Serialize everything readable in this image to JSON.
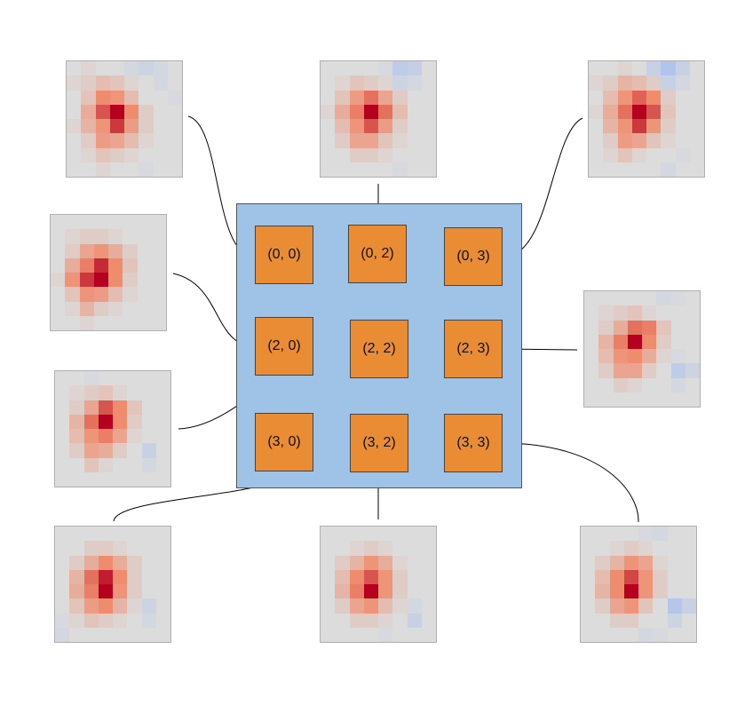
{
  "cells": [
    {
      "label": "(0, 0)"
    },
    {
      "label": "(0, 2)"
    },
    {
      "label": "(0, 3)"
    },
    {
      "label": "(2, 0)"
    },
    {
      "label": "(2, 2)"
    },
    {
      "label": "(2, 3)"
    },
    {
      "label": "(3, 0)"
    },
    {
      "label": "(3, 2)"
    },
    {
      "label": "(3, 3)"
    }
  ],
  "colors": {
    "panel": "#9fc3e7",
    "cell": "#e98c33",
    "heat_neutral": "#dcdcdc",
    "heat_cold": "#7aa6ff",
    "heat_hot": "#b5001f"
  },
  "heatmaps": [
    {
      "cell": "(0, 0)",
      "grid": [
        [
          0,
          0.05,
          0,
          0,
          -0.1,
          -0.15,
          -0.1,
          0
        ],
        [
          0.05,
          0.1,
          0.2,
          0.15,
          0.05,
          0,
          -0.1,
          0
        ],
        [
          0,
          0.15,
          0.5,
          0.45,
          0.2,
          0,
          0,
          -0.05
        ],
        [
          0,
          0.3,
          0.7,
          1.0,
          0.5,
          0.1,
          0,
          0
        ],
        [
          0.05,
          0.25,
          0.45,
          0.8,
          0.4,
          0.1,
          0,
          0
        ],
        [
          0,
          0.1,
          0.4,
          0.35,
          0.2,
          0.05,
          0,
          0
        ],
        [
          0,
          0.05,
          0.15,
          0.1,
          0.05,
          0,
          0,
          0
        ],
        [
          0,
          0,
          0.05,
          0,
          0,
          -0.05,
          0,
          0
        ]
      ]
    },
    {
      "cell": "(0, 2)",
      "grid": [
        [
          0,
          0,
          0,
          0,
          -0.05,
          -0.3,
          -0.25,
          0
        ],
        [
          0,
          0.05,
          0.15,
          0.1,
          0.05,
          -0.15,
          -0.1,
          0
        ],
        [
          0,
          0.15,
          0.4,
          0.6,
          0.35,
          0.1,
          0,
          0
        ],
        [
          0.05,
          0.3,
          0.55,
          1.0,
          0.6,
          0.2,
          0,
          0
        ],
        [
          0,
          0.2,
          0.45,
          0.7,
          0.4,
          0.1,
          0,
          0
        ],
        [
          0,
          0.1,
          0.35,
          0.35,
          0.15,
          0.05,
          0,
          0
        ],
        [
          0,
          0,
          0.1,
          0.1,
          0.05,
          0,
          0,
          0
        ],
        [
          0,
          0,
          0,
          0,
          0,
          -0.05,
          0,
          0
        ]
      ]
    },
    {
      "cell": "(0, 3)",
      "grid": [
        [
          0,
          0,
          0.05,
          0,
          -0.2,
          -0.45,
          -0.2,
          0
        ],
        [
          0.05,
          0.1,
          0.25,
          0.2,
          0.1,
          -0.2,
          -0.1,
          0
        ],
        [
          0,
          0.2,
          0.45,
          0.65,
          0.5,
          0.1,
          0,
          0
        ],
        [
          0.05,
          0.3,
          0.6,
          1.0,
          0.7,
          0.15,
          0,
          0
        ],
        [
          0,
          0.25,
          0.45,
          0.8,
          0.45,
          0.1,
          0,
          0
        ],
        [
          0,
          0.1,
          0.4,
          0.35,
          0.15,
          0.05,
          0,
          0
        ],
        [
          0,
          0.05,
          0.15,
          0.05,
          0,
          0,
          -0.05,
          0
        ],
        [
          0,
          0,
          0,
          0,
          0,
          -0.1,
          0,
          0
        ]
      ]
    },
    {
      "cell": "(2, 0)",
      "grid": [
        [
          0,
          0,
          0,
          0,
          0,
          0,
          0,
          0
        ],
        [
          0,
          0.05,
          0.1,
          0.1,
          0.05,
          0,
          0,
          0
        ],
        [
          0,
          0.1,
          0.35,
          0.45,
          0.3,
          0.1,
          0,
          0
        ],
        [
          0,
          0.3,
          0.55,
          0.85,
          0.5,
          0.15,
          0,
          0
        ],
        [
          0.05,
          0.45,
          0.8,
          1.0,
          0.5,
          0.1,
          0,
          0
        ],
        [
          0,
          0.15,
          0.45,
          0.4,
          0.2,
          0.05,
          0,
          0
        ],
        [
          0,
          0.05,
          0.25,
          0.1,
          0.05,
          0,
          0,
          0
        ],
        [
          0,
          0,
          0.05,
          0,
          0,
          0,
          0,
          0
        ]
      ]
    },
    {
      "cell": "(2, 2)",
      "grid": [
        [
          0,
          0,
          -0.05,
          0,
          0,
          0,
          0,
          0
        ],
        [
          0,
          0.05,
          0.1,
          0.15,
          0.05,
          0,
          0,
          0
        ],
        [
          0,
          0.1,
          0.35,
          0.7,
          0.5,
          0.15,
          0,
          0
        ],
        [
          0,
          0.25,
          0.6,
          1.0,
          0.5,
          0.1,
          0,
          0
        ],
        [
          0,
          0.2,
          0.45,
          0.55,
          0.35,
          0.05,
          0,
          0
        ],
        [
          0,
          0.1,
          0.35,
          0.3,
          0.1,
          0,
          -0.2,
          0
        ],
        [
          0,
          0,
          0.15,
          0.05,
          0,
          0,
          -0.1,
          0
        ],
        [
          0,
          0,
          0,
          0,
          0,
          0,
          0,
          0
        ]
      ]
    },
    {
      "cell": "(2, 3)",
      "grid": [
        [
          0,
          0,
          0,
          0,
          0,
          -0.1,
          -0.05,
          0
        ],
        [
          0,
          0.05,
          0.1,
          0.15,
          0.05,
          0,
          0,
          0
        ],
        [
          0,
          0.1,
          0.3,
          0.6,
          0.55,
          0.15,
          0,
          0
        ],
        [
          0,
          0.25,
          0.55,
          1.0,
          0.5,
          0.1,
          0,
          0
        ],
        [
          0,
          0.2,
          0.45,
          0.5,
          0.3,
          0.05,
          -0.05,
          0
        ],
        [
          0,
          0.1,
          0.35,
          0.35,
          0.1,
          0,
          -0.3,
          -0.15
        ],
        [
          0,
          0,
          0.1,
          0.05,
          0,
          0,
          -0.1,
          0
        ],
        [
          0,
          0,
          0,
          0,
          0,
          0,
          0,
          0
        ]
      ]
    },
    {
      "cell": "(3, 0)",
      "grid": [
        [
          0,
          0,
          0,
          0,
          0,
          0,
          0,
          0
        ],
        [
          0,
          0,
          0.1,
          0.1,
          0.05,
          0,
          0,
          0
        ],
        [
          0,
          0.1,
          0.3,
          0.5,
          0.3,
          0.1,
          0,
          0
        ],
        [
          0,
          0.25,
          0.6,
          0.9,
          0.5,
          0.1,
          0,
          0
        ],
        [
          0,
          0.3,
          0.55,
          1.0,
          0.45,
          0.1,
          0,
          0
        ],
        [
          0,
          0.15,
          0.4,
          0.5,
          0.25,
          0.05,
          -0.15,
          0
        ],
        [
          -0.05,
          0.05,
          0.15,
          0.1,
          0.05,
          0,
          -0.1,
          0
        ],
        [
          -0.1,
          0,
          0,
          0,
          0,
          0,
          0,
          0
        ]
      ]
    },
    {
      "cell": "(3, 2)",
      "grid": [
        [
          0,
          0,
          0,
          0,
          0,
          0,
          0,
          0
        ],
        [
          0,
          0,
          0.05,
          0.1,
          0.05,
          0,
          0,
          0
        ],
        [
          0,
          0.1,
          0.25,
          0.45,
          0.3,
          0.05,
          0,
          0
        ],
        [
          0,
          0.2,
          0.5,
          0.7,
          0.45,
          0.1,
          0,
          0
        ],
        [
          0,
          0.25,
          0.55,
          1.0,
          0.45,
          0.1,
          0,
          0
        ],
        [
          0,
          0.1,
          0.35,
          0.45,
          0.2,
          0.05,
          -0.1,
          0
        ],
        [
          0,
          0,
          0.1,
          0.1,
          0.05,
          0,
          -0.2,
          0
        ],
        [
          0,
          0,
          0,
          0,
          -0.05,
          0,
          0,
          0
        ]
      ]
    },
    {
      "cell": "(3, 3)",
      "grid": [
        [
          0,
          0,
          0,
          0,
          -0.05,
          -0.1,
          0,
          0
        ],
        [
          0,
          0,
          0.05,
          0.1,
          0.05,
          0,
          0,
          0
        ],
        [
          0,
          0.1,
          0.25,
          0.45,
          0.35,
          0.05,
          0,
          0
        ],
        [
          0,
          0.2,
          0.5,
          0.75,
          0.45,
          0.1,
          0,
          0
        ],
        [
          0,
          0.25,
          0.5,
          1.0,
          0.45,
          0.1,
          0,
          0
        ],
        [
          0,
          0.1,
          0.35,
          0.45,
          0.15,
          0,
          -0.4,
          -0.2
        ],
        [
          0,
          0,
          0.1,
          0.1,
          0,
          0,
          -0.15,
          0
        ],
        [
          0,
          0,
          0,
          0,
          -0.1,
          -0.05,
          0,
          0
        ]
      ]
    }
  ]
}
